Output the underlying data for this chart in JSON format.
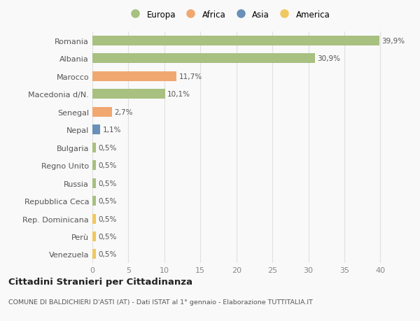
{
  "categories": [
    "Romania",
    "Albania",
    "Marocco",
    "Macedonia d/N.",
    "Senegal",
    "Nepal",
    "Bulgaria",
    "Regno Unito",
    "Russia",
    "Repubblica Ceca",
    "Rep. Dominicana",
    "Perù",
    "Venezuela"
  ],
  "values": [
    39.9,
    30.9,
    11.7,
    10.1,
    2.7,
    1.1,
    0.5,
    0.5,
    0.5,
    0.5,
    0.5,
    0.5,
    0.5
  ],
  "labels": [
    "39,9%",
    "30,9%",
    "11,7%",
    "10,1%",
    "2,7%",
    "1,1%",
    "0,5%",
    "0,5%",
    "0,5%",
    "0,5%",
    "0,5%",
    "0,5%",
    "0,5%"
  ],
  "colors": [
    "#a8c080",
    "#a8c080",
    "#f0a870",
    "#a8c080",
    "#f0a870",
    "#6890b8",
    "#a8c080",
    "#a8c080",
    "#a8c080",
    "#a8c080",
    "#f0c860",
    "#f0c860",
    "#f0c860"
  ],
  "legend_labels": [
    "Europa",
    "Africa",
    "Asia",
    "America"
  ],
  "legend_colors": [
    "#a8c080",
    "#f0a870",
    "#6890b8",
    "#f0c860"
  ],
  "title": "Cittadini Stranieri per Cittadinanza",
  "subtitle": "COMUNE DI BALDICHIERI D'ASTI (AT) - Dati ISTAT al 1° gennaio - Elaborazione TUTTITALIA.IT",
  "xlim": [
    0,
    42
  ],
  "xticks": [
    0,
    5,
    10,
    15,
    20,
    25,
    30,
    35,
    40
  ],
  "background_color": "#f9f9f9",
  "grid_color": "#e0e0e0",
  "bar_height": 0.55
}
